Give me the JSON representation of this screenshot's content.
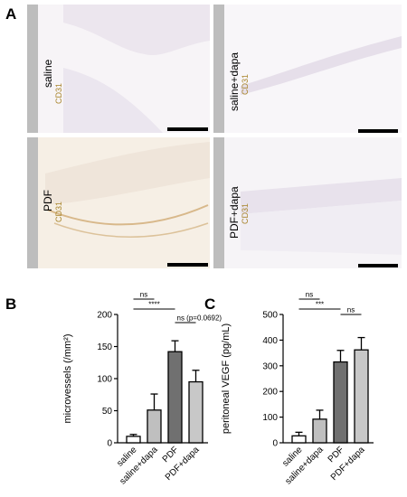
{
  "panels": {
    "a": "A",
    "b": "B",
    "c": "C"
  },
  "micrographs": [
    {
      "condition": "saline",
      "stain": "CD31",
      "tissue_color": "#f3eef3"
    },
    {
      "condition": "saline+dapa",
      "stain": "CD31",
      "tissue_color": "#f1eef4"
    },
    {
      "condition": "PDF",
      "stain": "CD31",
      "tissue_color": "#f3e9dc"
    },
    {
      "condition": "PDF+dapa",
      "stain": "CD31",
      "tissue_color": "#efecf2"
    }
  ],
  "chart_data": [
    {
      "type": "bar",
      "categories": [
        "saline",
        "saline+dapa",
        "PDF",
        "PDF+dapa"
      ],
      "values": [
        10,
        51,
        142,
        95
      ],
      "errors": [
        3,
        25,
        17,
        18
      ],
      "bar_colors": [
        "#ffffff",
        "#bfbfbf",
        "#707070",
        "#c8c8c8"
      ],
      "ylabel": "microvessels (/mm²)",
      "ylim": [
        0,
        200
      ],
      "yticks": [
        0,
        50,
        100,
        150,
        200
      ],
      "comparisons": [
        {
          "from": 0,
          "to": 1,
          "label": "ns"
        },
        {
          "from": 0,
          "to": 2,
          "label": "****"
        },
        {
          "from": 2,
          "to": 3,
          "label": "ns (p=0.0692)"
        }
      ]
    },
    {
      "type": "bar",
      "categories": [
        "saline",
        "saline+dapa",
        "PDF",
        "PDF+dapa"
      ],
      "values": [
        27,
        92,
        315,
        362
      ],
      "errors": [
        14,
        35,
        45,
        48
      ],
      "bar_colors": [
        "#ffffff",
        "#bfbfbf",
        "#707070",
        "#c8c8c8"
      ],
      "ylabel": "peritoneal VEGF (pg/mL)",
      "ylim": [
        0,
        500
      ],
      "yticks": [
        0,
        100,
        200,
        300,
        400,
        500
      ],
      "comparisons": [
        {
          "from": 0,
          "to": 1,
          "label": "ns"
        },
        {
          "from": 0,
          "to": 2,
          "label": "***"
        },
        {
          "from": 2,
          "to": 3,
          "label": "ns"
        }
      ]
    }
  ]
}
